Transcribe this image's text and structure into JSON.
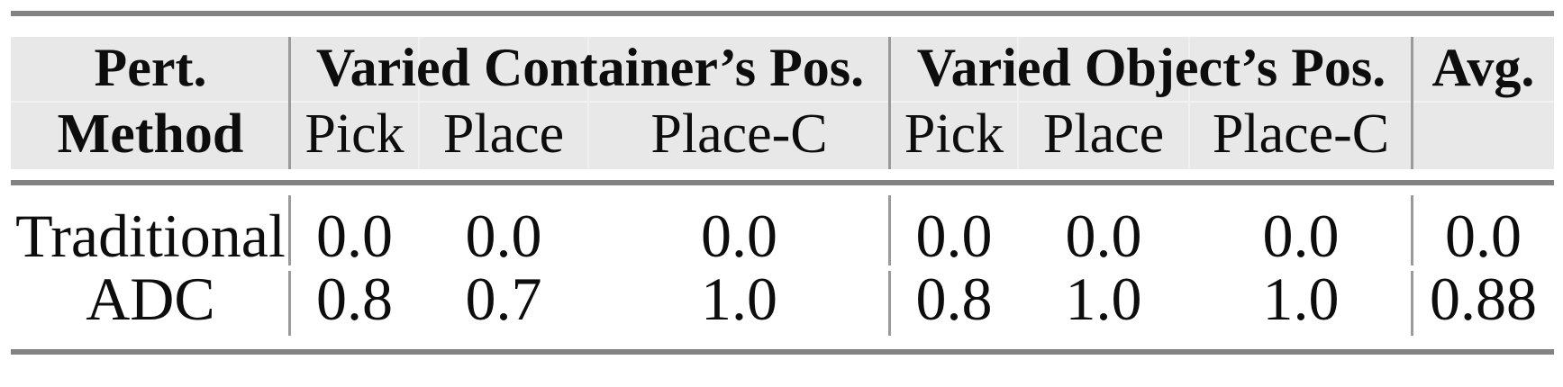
{
  "table": {
    "header": {
      "col1": {
        "line1": "Pert.",
        "line2": "Method"
      },
      "group1_title": "Varied Container’s Pos.",
      "group2_title": "Varied Object’s Pos.",
      "avg_title": "Avg.",
      "subcolumns": [
        "Pick",
        "Place",
        "Place-C"
      ]
    },
    "rows": [
      {
        "method": "Traditional",
        "container_pick": "0.0",
        "container_place": "0.0",
        "container_place_c": "0.0",
        "object_pick": "0.0",
        "object_place": "0.0",
        "object_place_c": "0.0",
        "avg": "0.0"
      },
      {
        "method": "ADC",
        "container_pick": "0.8",
        "container_place": "0.7",
        "container_place_c": "1.0",
        "object_pick": "0.8",
        "object_place": "1.0",
        "object_place_c": "1.0",
        "avg": "0.88"
      }
    ],
    "colors": {
      "rule": "#828282",
      "divider": "#9a9a9a",
      "header_background": "#e8e8e8",
      "text": "#0d0d0d",
      "body_background": "#ffffff"
    }
  },
  "chart_data": {
    "type": "table",
    "title": "",
    "column_groups": [
      "Pert. Method",
      "Varied Container's Pos.",
      "Varied Object's Pos.",
      "Avg."
    ],
    "columns": [
      "Pert. Method",
      "Container Pick",
      "Container Place",
      "Container Place-C",
      "Object Pick",
      "Object Place",
      "Object Place-C",
      "Avg."
    ],
    "rows": [
      [
        "Traditional",
        0.0,
        0.0,
        0.0,
        0.0,
        0.0,
        0.0,
        0.0
      ],
      [
        "ADC",
        0.8,
        0.7,
        1.0,
        0.8,
        1.0,
        1.0,
        0.88
      ]
    ]
  }
}
